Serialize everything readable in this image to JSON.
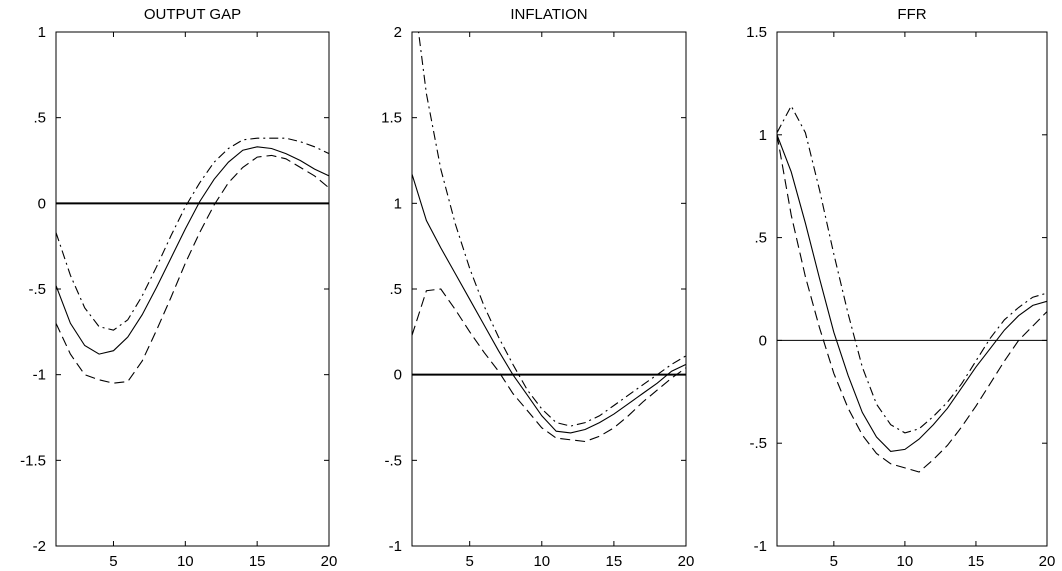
{
  "chart_data": [
    {
      "type": "line",
      "title": "OUTPUT GAP",
      "xlabel": "",
      "ylabel": "",
      "xlim": [
        1,
        20
      ],
      "ylim": [
        -2,
        1
      ],
      "xticks": [
        5,
        10,
        15,
        20
      ],
      "yticks": [
        -2,
        -1.5,
        -1,
        -0.5,
        0,
        0.5,
        1
      ],
      "zero_line": true,
      "x": [
        1,
        2,
        3,
        4,
        5,
        6,
        7,
        8,
        9,
        10,
        11,
        12,
        13,
        14,
        15,
        16,
        17,
        18,
        19,
        20
      ],
      "series": [
        {
          "style": "solid",
          "values": [
            -0.48,
            -0.7,
            -0.83,
            -0.88,
            -0.86,
            -0.78,
            -0.65,
            -0.49,
            -0.32,
            -0.15,
            0.01,
            0.14,
            0.24,
            0.31,
            0.33,
            0.32,
            0.29,
            0.25,
            0.2,
            0.16
          ]
        },
        {
          "style": "dashdot",
          "values": [
            -0.17,
            -0.42,
            -0.61,
            -0.72,
            -0.74,
            -0.68,
            -0.54,
            -0.37,
            -0.19,
            -0.02,
            0.12,
            0.24,
            0.32,
            0.37,
            0.38,
            0.38,
            0.38,
            0.36,
            0.33,
            0.29
          ]
        },
        {
          "style": "dashed",
          "values": [
            -0.7,
            -0.88,
            -1.0,
            -1.03,
            -1.05,
            -1.04,
            -0.92,
            -0.74,
            -0.55,
            -0.35,
            -0.17,
            -0.01,
            0.12,
            0.21,
            0.27,
            0.28,
            0.26,
            0.21,
            0.16,
            0.09
          ]
        }
      ]
    },
    {
      "type": "line",
      "title": "INFLATION",
      "xlabel": "",
      "ylabel": "",
      "xlim": [
        1,
        20
      ],
      "ylim": [
        -1,
        2
      ],
      "xticks": [
        5,
        10,
        15,
        20
      ],
      "yticks": [
        -1,
        -0.5,
        0,
        0.5,
        1,
        1.5,
        2
      ],
      "zero_line": true,
      "x": [
        1,
        2,
        3,
        4,
        5,
        6,
        7,
        8,
        9,
        10,
        11,
        12,
        13,
        14,
        15,
        16,
        17,
        18,
        19,
        20
      ],
      "series": [
        {
          "style": "solid",
          "values": [
            1.17,
            0.9,
            0.74,
            0.59,
            0.44,
            0.29,
            0.14,
            0.0,
            -0.12,
            -0.24,
            -0.33,
            -0.34,
            -0.32,
            -0.28,
            -0.23,
            -0.17,
            -0.11,
            -0.05,
            0.02,
            0.06
          ]
        },
        {
          "style": "dashdot",
          "values": [
            2.3,
            1.64,
            1.2,
            0.88,
            0.62,
            0.4,
            0.22,
            0.06,
            -0.09,
            -0.2,
            -0.28,
            -0.3,
            -0.28,
            -0.24,
            -0.18,
            -0.12,
            -0.06,
            0.0,
            0.06,
            0.11
          ]
        },
        {
          "style": "dashed",
          "values": [
            0.23,
            0.49,
            0.5,
            0.38,
            0.25,
            0.13,
            0.02,
            -0.11,
            -0.21,
            -0.31,
            -0.37,
            -0.38,
            -0.39,
            -0.36,
            -0.31,
            -0.24,
            -0.16,
            -0.09,
            -0.02,
            0.04
          ]
        }
      ]
    },
    {
      "type": "line",
      "title": "FFR",
      "xlabel": "",
      "ylabel": "",
      "xlim": [
        1,
        20
      ],
      "ylim": [
        -1,
        1.5
      ],
      "xticks": [
        5,
        10,
        15,
        20
      ],
      "yticks": [
        -1,
        -0.5,
        0,
        0.5,
        1,
        1.5
      ],
      "zero_line": true,
      "x": [
        1,
        2,
        3,
        4,
        5,
        6,
        7,
        8,
        9,
        10,
        11,
        12,
        13,
        14,
        15,
        16,
        17,
        18,
        19,
        20
      ],
      "series": [
        {
          "style": "solid",
          "values": [
            1.0,
            0.82,
            0.57,
            0.3,
            0.04,
            -0.17,
            -0.35,
            -0.47,
            -0.54,
            -0.53,
            -0.48,
            -0.41,
            -0.33,
            -0.23,
            -0.13,
            -0.04,
            0.05,
            0.12,
            0.17,
            0.19
          ]
        },
        {
          "style": "dashdot",
          "values": [
            1.01,
            1.14,
            1.01,
            0.73,
            0.42,
            0.13,
            -0.13,
            -0.31,
            -0.41,
            -0.45,
            -0.43,
            -0.37,
            -0.3,
            -0.21,
            -0.1,
            0.01,
            0.1,
            0.16,
            0.21,
            0.23
          ]
        },
        {
          "style": "dashed",
          "values": [
            1.0,
            0.61,
            0.31,
            0.06,
            -0.16,
            -0.33,
            -0.46,
            -0.55,
            -0.6,
            -0.62,
            -0.64,
            -0.58,
            -0.51,
            -0.42,
            -0.32,
            -0.21,
            -0.1,
            0.0,
            0.07,
            0.14
          ]
        }
      ]
    }
  ]
}
